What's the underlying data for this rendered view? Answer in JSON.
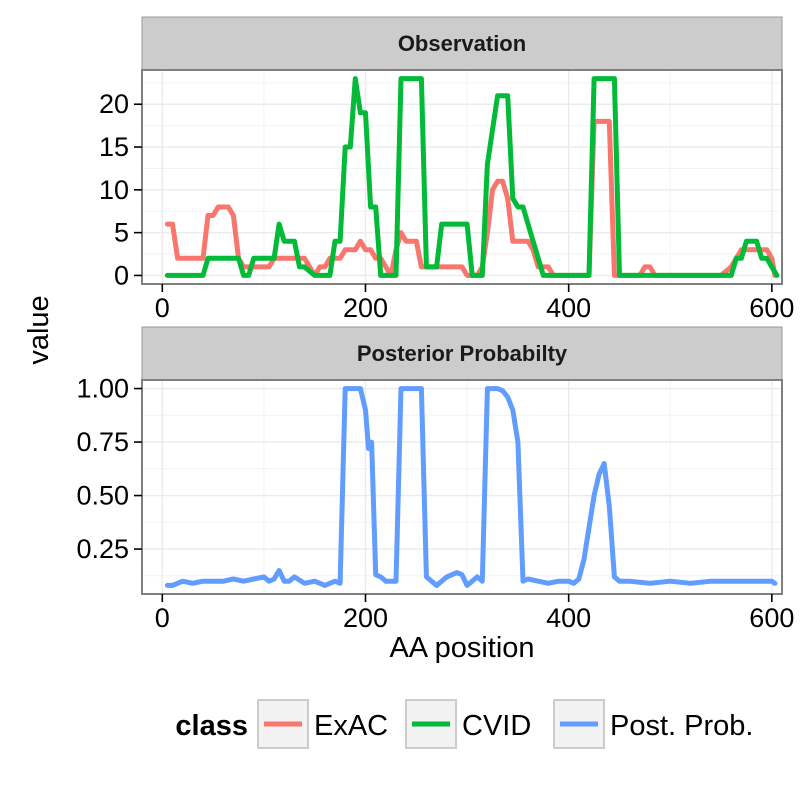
{
  "chart_data": {
    "type": "line",
    "xlabel": "AA position",
    "ylabel": "value",
    "grid": true,
    "legend_placement": "bottom",
    "legend": {
      "title": "class",
      "entries": [
        {
          "name": "ExAC",
          "color": "#F8766D"
        },
        {
          "name": "CVID",
          "color": "#00BA38"
        },
        {
          "name": "Post. Prob.",
          "color": "#619CFF"
        }
      ]
    },
    "panels": [
      {
        "title": "Observation",
        "xlim": [
          -20,
          610
        ],
        "ylim": [
          -1,
          24
        ],
        "xticks": [
          0,
          200,
          400,
          600
        ],
        "yticks": [
          0,
          5,
          10,
          15,
          20
        ],
        "series": [
          {
            "name": "ExAC",
            "color": "#F8766D",
            "x": [
              5,
              10,
              15,
              20,
              40,
              45,
              50,
              55,
              60,
              65,
              70,
              75,
              80,
              85,
              90,
              95,
              100,
              105,
              110,
              115,
              120,
              125,
              130,
              135,
              140,
              145,
              150,
              155,
              160,
              165,
              170,
              175,
              180,
              185,
              190,
              195,
              200,
              205,
              210,
              215,
              220,
              225,
              230,
              235,
              240,
              245,
              250,
              255,
              260,
              265,
              270,
              275,
              280,
              285,
              290,
              295,
              300,
              305,
              310,
              315,
              320,
              325,
              330,
              335,
              340,
              345,
              350,
              355,
              360,
              365,
              370,
              375,
              380,
              385,
              390,
              395,
              400,
              405,
              410,
              415,
              420,
              425,
              430,
              435,
              440,
              445,
              450,
              460,
              470,
              475,
              480,
              485,
              490,
              550,
              560,
              565,
              570,
              575,
              580,
              585,
              590,
              595,
              600,
              603
            ],
            "y": [
              6,
              6,
              2,
              2,
              2,
              7,
              7,
              8,
              8,
              8,
              7,
              2,
              1,
              1,
              1,
              1,
              1,
              1,
              2,
              2,
              2,
              2,
              2,
              2,
              2,
              1,
              0,
              1,
              1,
              2,
              2,
              2,
              3,
              3,
              3,
              4,
              3,
              3,
              2,
              2,
              1,
              0,
              3,
              5,
              4,
              4,
              4,
              1,
              1,
              1,
              1,
              1,
              1,
              1,
              1,
              1,
              0,
              0,
              0,
              1,
              5,
              10,
              11,
              11,
              9,
              4,
              4,
              4,
              4,
              3,
              1,
              1,
              1,
              0,
              0,
              0,
              0,
              0,
              0,
              0,
              0,
              18,
              18,
              18,
              18,
              0,
              0,
              0,
              0,
              1,
              1,
              0,
              0,
              0,
              1,
              2,
              3,
              3,
              3,
              3,
              3,
              3,
              2,
              0
            ]
          },
          {
            "name": "CVID",
            "color": "#00BA38",
            "x": [
              5,
              10,
              20,
              30,
              40,
              45,
              50,
              55,
              60,
              65,
              70,
              75,
              80,
              85,
              90,
              100,
              110,
              115,
              120,
              125,
              130,
              135,
              140,
              150,
              160,
              165,
              170,
              175,
              180,
              185,
              190,
              195,
              200,
              205,
              210,
              215,
              220,
              225,
              230,
              235,
              240,
              245,
              250,
              255,
              260,
              265,
              270,
              275,
              280,
              285,
              290,
              295,
              300,
              305,
              310,
              315,
              320,
              325,
              330,
              335,
              340,
              345,
              350,
              355,
              360,
              365,
              370,
              375,
              380,
              390,
              400,
              410,
              415,
              420,
              425,
              430,
              435,
              440,
              445,
              450,
              460,
              480,
              500,
              520,
              540,
              550,
              555,
              560,
              565,
              570,
              575,
              580,
              585,
              590,
              595,
              600,
              605
            ],
            "y": [
              0,
              0,
              0,
              0,
              0,
              2,
              2,
              2,
              2,
              2,
              2,
              2,
              0,
              0,
              2,
              2,
              2,
              6,
              4,
              4,
              4,
              1,
              1,
              0,
              0,
              0,
              4,
              4,
              15,
              15,
              23,
              19,
              19,
              8,
              8,
              0,
              0,
              0,
              0,
              23,
              23,
              23,
              23,
              23,
              1,
              1,
              1,
              6,
              6,
              6,
              6,
              6,
              6,
              0,
              0,
              0,
              13,
              17,
              21,
              21,
              21,
              9,
              8,
              8,
              6,
              4,
              2,
              0,
              0,
              0,
              0,
              0,
              0,
              0,
              23,
              23,
              23,
              23,
              23,
              0,
              0,
              0,
              0,
              0,
              0,
              0,
              0,
              0,
              2,
              2,
              4,
              4,
              4,
              2,
              2,
              1,
              0
            ]
          }
        ]
      },
      {
        "title": "Posterior Probabilty",
        "xlim": [
          -20,
          610
        ],
        "ylim": [
          0.04,
          1.04
        ],
        "xticks": [
          0,
          200,
          400,
          600
        ],
        "yticks": [
          0.25,
          0.5,
          0.75,
          1.0
        ],
        "ytick_labels": [
          "0.25",
          "0.50",
          "0.75",
          "1.00"
        ],
        "series": [
          {
            "name": "Post. Prob.",
            "color": "#619CFF",
            "x": [
              5,
              10,
              20,
              30,
              40,
              50,
              60,
              70,
              80,
              90,
              100,
              105,
              110,
              115,
              120,
              125,
              130,
              140,
              150,
              160,
              170,
              175,
              180,
              185,
              190,
              195,
              200,
              203,
              206,
              210,
              215,
              220,
              225,
              230,
              235,
              240,
              245,
              250,
              255,
              260,
              265,
              270,
              280,
              290,
              295,
              300,
              305,
              310,
              315,
              320,
              325,
              330,
              335,
              340,
              345,
              350,
              355,
              360,
              370,
              380,
              390,
              400,
              405,
              410,
              415,
              420,
              425,
              430,
              435,
              440,
              445,
              450,
              460,
              480,
              500,
              520,
              540,
              560,
              580,
              600,
              603
            ],
            "y": [
              0.08,
              0.08,
              0.1,
              0.09,
              0.1,
              0.1,
              0.1,
              0.11,
              0.1,
              0.11,
              0.12,
              0.1,
              0.11,
              0.15,
              0.1,
              0.1,
              0.12,
              0.09,
              0.1,
              0.08,
              0.1,
              0.09,
              1.0,
              1.0,
              1.0,
              1.0,
              0.9,
              0.72,
              0.75,
              0.13,
              0.12,
              0.1,
              0.1,
              0.1,
              1.0,
              1.0,
              1.0,
              1.0,
              1.0,
              0.12,
              0.1,
              0.08,
              0.12,
              0.14,
              0.13,
              0.08,
              0.1,
              0.12,
              0.1,
              1.0,
              1.0,
              1.0,
              0.99,
              0.96,
              0.9,
              0.75,
              0.1,
              0.11,
              0.1,
              0.09,
              0.1,
              0.1,
              0.09,
              0.11,
              0.2,
              0.35,
              0.5,
              0.6,
              0.65,
              0.45,
              0.12,
              0.1,
              0.1,
              0.09,
              0.1,
              0.09,
              0.1,
              0.1,
              0.1,
              0.1,
              0.09
            ]
          }
        ]
      }
    ]
  }
}
